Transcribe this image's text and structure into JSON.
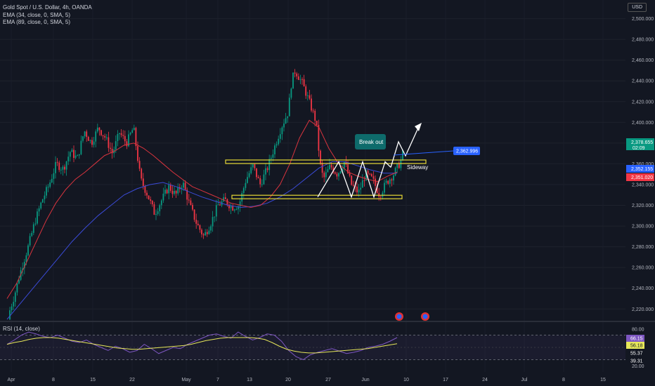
{
  "header": {
    "symbol_title": "Gold Spot / U.S. Dollar, 4h, OANDA",
    "ema34_label": "EMA (34, close, 0, SMA, 5)",
    "ema89_label": "EMA (89, close, 0, SMA, 5)",
    "currency_button": "USD"
  },
  "rsi_panel": {
    "label": "RSI (14, close)"
  },
  "annotations": {
    "breakout_label": "Break out",
    "sideway_label": "Sideway",
    "target_price_label": "2,362.996"
  },
  "price_tags": [
    {
      "name": "last-price",
      "value": "2,378.655",
      "sub": "02:09",
      "color": "#089981"
    },
    {
      "name": "ema34-price",
      "value": "2,352.155",
      "color": "#2962ff"
    },
    {
      "name": "ema89-price",
      "value": "2,351.020",
      "color": "#f23645"
    }
  ],
  "rsi_tags": [
    {
      "value": "66.15",
      "color": "#7e57c2"
    },
    {
      "value": "56.18",
      "color": "#e6e65a"
    },
    {
      "value": "55.37",
      "color": "#131722"
    },
    {
      "value": "39.31",
      "color": "#131722"
    }
  ],
  "chart_data": {
    "type": "candlestick",
    "y_axis": {
      "ticks": [
        2220,
        2240,
        2260,
        2280,
        2300,
        2320,
        2340,
        2360,
        2380,
        2400,
        2420,
        2440,
        2460,
        2480,
        2500
      ],
      "tick_labels": [
        "2,220.000",
        "2,240.000",
        "2,260.000",
        "2,280.000",
        "2,300.000",
        "2,320.000",
        "2,340.000",
        "2,360.000",
        "2,380.000",
        "2,400.000",
        "2,420.000",
        "2,440.000",
        "2,460.000",
        "2,480.000",
        "2,500.000"
      ],
      "range": [
        2208,
        2518
      ]
    },
    "x_axis": {
      "labels": [
        "Apr",
        "8",
        "15",
        "22",
        "May",
        "7",
        "13",
        "20",
        "27",
        "Jun",
        "10",
        "17",
        "24",
        "Jul",
        "8",
        "15"
      ]
    },
    "price_path": [
      [
        0,
        2210
      ],
      [
        10,
        2232
      ],
      [
        20,
        2258
      ],
      [
        30,
        2280
      ],
      [
        40,
        2305
      ],
      [
        50,
        2325
      ],
      [
        60,
        2340
      ],
      [
        70,
        2360
      ],
      [
        80,
        2355
      ],
      [
        90,
        2372
      ],
      [
        100,
        2365
      ],
      [
        110,
        2392
      ],
      [
        120,
        2380
      ],
      [
        130,
        2395
      ],
      [
        140,
        2385
      ],
      [
        150,
        2370
      ],
      [
        160,
        2390
      ],
      [
        170,
        2380
      ],
      [
        180,
        2395
      ],
      [
        190,
        2345
      ],
      [
        200,
        2330
      ],
      [
        210,
        2312
      ],
      [
        220,
        2325
      ],
      [
        230,
        2338
      ],
      [
        240,
        2330
      ],
      [
        250,
        2342
      ],
      [
        260,
        2320
      ],
      [
        270,
        2302
      ],
      [
        280,
        2290
      ],
      [
        290,
        2303
      ],
      [
        300,
        2320
      ],
      [
        310,
        2325
      ],
      [
        320,
        2318
      ],
      [
        330,
        2320
      ],
      [
        340,
        2345
      ],
      [
        350,
        2358
      ],
      [
        360,
        2340
      ],
      [
        370,
        2355
      ],
      [
        380,
        2375
      ],
      [
        390,
        2395
      ],
      [
        400,
        2410
      ],
      [
        405,
        2440
      ],
      [
        410,
        2450
      ],
      [
        420,
        2438
      ],
      [
        430,
        2420
      ],
      [
        440,
        2400
      ],
      [
        445,
        2362
      ],
      [
        450,
        2345
      ],
      [
        460,
        2358
      ],
      [
        470,
        2350
      ],
      [
        480,
        2362
      ],
      [
        490,
        2340
      ],
      [
        500,
        2332
      ],
      [
        510,
        2350
      ],
      [
        520,
        2345
      ],
      [
        530,
        2330
      ],
      [
        540,
        2342
      ],
      [
        550,
        2350
      ],
      [
        560,
        2362
      ],
      [
        565,
        2375
      ]
    ],
    "ema34": [
      2230,
      2245,
      2265,
      2285,
      2305,
      2322,
      2335,
      2345,
      2352,
      2360,
      2368,
      2372,
      2378,
      2380,
      2375,
      2368,
      2360,
      2352,
      2345,
      2338,
      2334,
      2330,
      2326,
      2322,
      2320,
      2318,
      2320,
      2328,
      2340,
      2360,
      2385,
      2402,
      2395,
      2375,
      2360,
      2352,
      2348,
      2345,
      2343,
      2348,
      2352
    ],
    "ema89": [
      2210,
      2225,
      2240,
      2255,
      2270,
      2285,
      2298,
      2310,
      2320,
      2330,
      2336,
      2340,
      2342,
      2338,
      2333,
      2328,
      2324,
      2320,
      2318,
      2319,
      2322,
      2328,
      2336,
      2346,
      2356,
      2362,
      2362,
      2358,
      2354,
      2351,
      2351
    ],
    "horizontal_zones": [
      {
        "name": "resistance",
        "y": 2362
      },
      {
        "name": "support",
        "y": 2328
      }
    ],
    "rsi": {
      "ticks": [
        20,
        80
      ],
      "tick_labels": [
        "20.00",
        "80.00"
      ],
      "bands": [
        30,
        70
      ],
      "values": [
        55,
        62,
        70,
        75,
        72,
        68,
        66,
        70,
        65,
        60,
        58,
        62,
        55,
        50,
        45,
        52,
        48,
        42,
        45,
        55,
        48,
        40,
        45,
        50,
        48,
        55,
        60,
        65,
        70,
        72,
        68,
        65,
        75,
        68,
        62,
        66,
        72,
        70,
        60,
        45,
        35,
        30,
        38,
        42,
        45,
        48,
        44,
        40,
        42,
        45,
        50,
        52,
        55,
        60,
        66
      ],
      "ma": [
        55,
        58,
        60,
        63,
        65,
        66,
        66,
        65,
        63,
        61,
        59,
        57,
        55,
        53,
        51,
        49,
        48,
        47,
        47,
        48,
        49,
        50,
        51,
        52,
        53,
        55,
        58,
        61,
        63,
        65,
        66,
        66,
        66,
        66,
        65,
        63,
        58,
        52,
        47,
        44,
        42,
        41,
        41,
        42,
        43,
        44,
        45,
        46,
        47,
        48,
        50,
        52,
        54,
        56
      ]
    }
  }
}
